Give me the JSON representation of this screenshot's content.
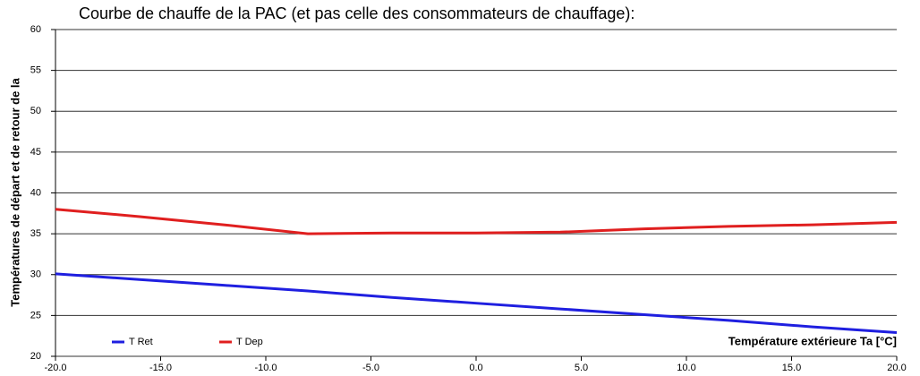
{
  "chart_data": {
    "type": "line",
    "title": "Courbe de chauffe de la PAC (et pas celle des consommateurs de chauffage):",
    "ylabel": "Températures de départ et de retour de la",
    "xlabel": "Température extérieure Ta [°C]",
    "x": [
      -20,
      -16,
      -12,
      -8,
      -4,
      0,
      4,
      8,
      12,
      16,
      20
    ],
    "series": [
      {
        "name": "T Ret",
        "color": "#1f1fe0",
        "values": [
          30.1,
          29.4,
          28.7,
          28.0,
          27.2,
          26.5,
          25.8,
          25.1,
          24.4,
          23.6,
          22.9
        ]
      },
      {
        "name": "T Dep",
        "color": "#e01f1f",
        "values": [
          38.0,
          37.1,
          36.1,
          35.0,
          35.1,
          35.1,
          35.2,
          35.6,
          35.9,
          36.1,
          36.4
        ]
      }
    ],
    "xlim": [
      -20,
      20
    ],
    "xticks": [
      {
        "value": -20,
        "label": "-20.0"
      },
      {
        "value": -15,
        "label": "-15.0"
      },
      {
        "value": -10,
        "label": "-10.0"
      },
      {
        "value": -5,
        "label": "-5.0"
      },
      {
        "value": 0,
        "label": "0.0"
      },
      {
        "value": 5,
        "label": "5.0"
      },
      {
        "value": 10,
        "label": "10.0"
      },
      {
        "value": 15,
        "label": "15.0"
      },
      {
        "value": 20,
        "label": "20.0"
      }
    ],
    "ylim": [
      20,
      60
    ],
    "yticks": [
      20,
      25,
      30,
      35,
      40,
      45,
      50,
      55,
      60
    ],
    "grid": true,
    "legend": "bottom-left"
  }
}
